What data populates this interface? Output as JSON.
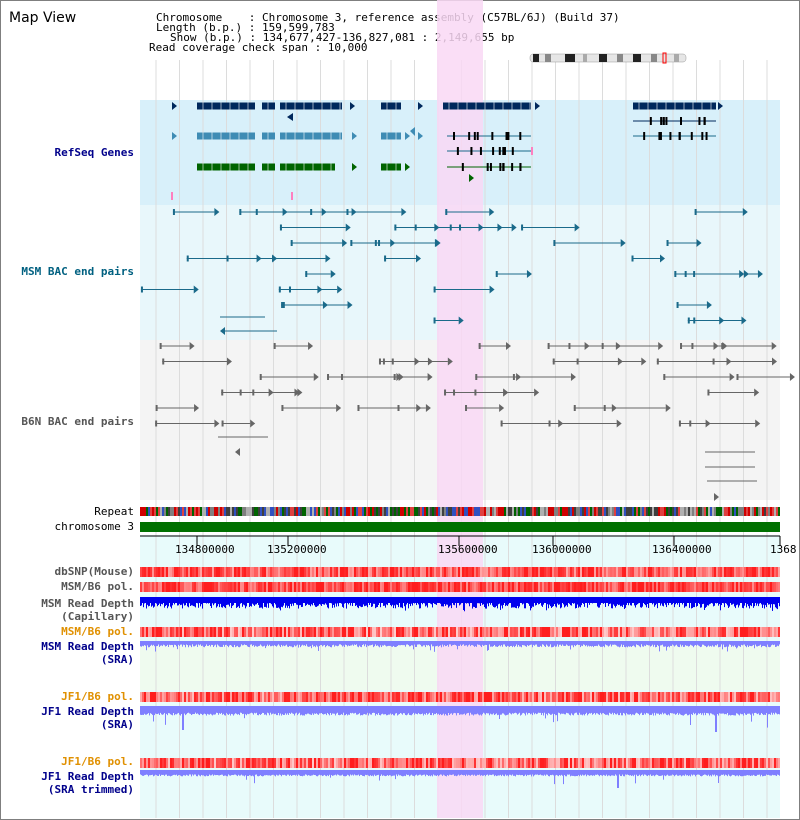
{
  "view_title": "Map View",
  "info": {
    "chromosome": "Chromosome    : Chromosome 3, reference assembly (C57BL/6J) (Build 37)",
    "length": "Length (b.p.) : 159,599,783",
    "show": "Show (b.p.) : 134,677,427-136,827,081 : 2,149,655 bp",
    "span": "Read coverage check span : 10,000"
  },
  "tracks": {
    "refseq": "RefSeq Genes",
    "msm_bac": "MSM BAC end pairs",
    "b6n_bac": "B6N BAC end pairs",
    "repeat": "Repeat",
    "chromosome": "chromosome 3",
    "dbsnp": "dbSNP(Mouse)",
    "msm_pol": "MSM/B6 pol.",
    "msm_depth_cap_1": "MSM Read Depth",
    "msm_depth_cap_2": "(Capillary)",
    "msm_pol2": "MSM/B6 pol.",
    "msm_depth_sra_1": "MSM Read Depth",
    "msm_depth_sra_2": "(SRA)",
    "jf1_pol": "JF1/B6 pol.",
    "jf1_depth_1": "JF1 Read Depth",
    "jf1_depth_2": "(SRA)",
    "jf1_pol2": "JF1/B6 pol.",
    "jf1_trim_1": "JF1 Read Depth",
    "jf1_trim_2": "(SRA trimmed)"
  },
  "axis": {
    "ticks": [
      "134800000",
      "135200000",
      "135600000",
      "136000000",
      "136400000",
      "1368"
    ]
  },
  "colors": {
    "highlight": "#f9d8f4",
    "refseq_bg": "#d8f0fa",
    "bac_bg": "#e8f7fb",
    "gene_dark": "#00285c",
    "gene_mid": "#3f8cb4",
    "gene_green": "#006400",
    "msm_line": "#1a6a8a",
    "b6n_line": "#666666",
    "depth_blue": "#0000ee",
    "depth_light": "#7f7fff"
  }
}
